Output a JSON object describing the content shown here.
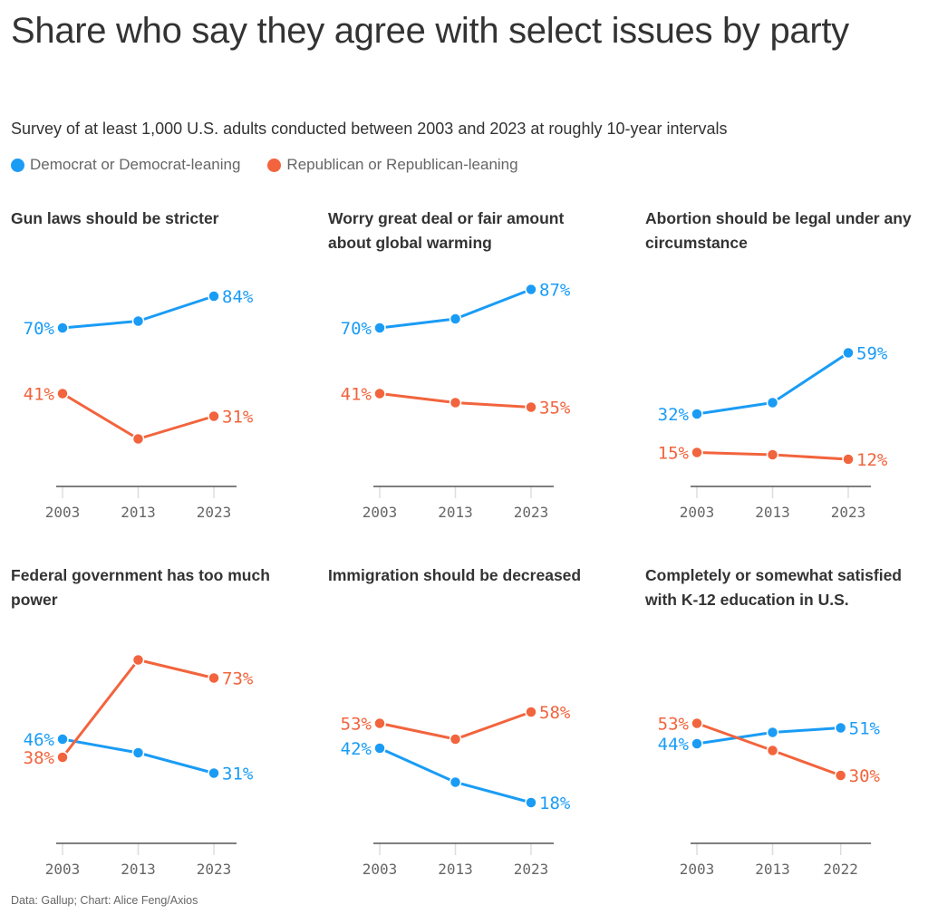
{
  "title": "Share who say they agree with select issues by party",
  "subtitle": "Survey of at least 1,000 U.S. adults conducted between 2003 and 2023 at roughly 10-year intervals",
  "legend": [
    {
      "label": "Democrat or Democrat-leaning",
      "color": "#1a9cf5"
    },
    {
      "label": "Republican or Republican-leaning",
      "color": "#f2643d"
    }
  ],
  "source": "Data: Gallup; Chart: Alice Feng/Axios",
  "chart_data": [
    {
      "type": "line",
      "title": "Gun laws should be stricter",
      "x": [
        2003,
        2013,
        2023
      ],
      "ylim": [
        0,
        100
      ],
      "series": [
        {
          "name": "Democrat or Democrat-leaning",
          "color": "#1a9cf5",
          "values": [
            70,
            73,
            84
          ],
          "labels": [
            "70%",
            null,
            "84%"
          ]
        },
        {
          "name": "Republican or Republican-leaning",
          "color": "#f2643d",
          "values": [
            41,
            21,
            31
          ],
          "labels": [
            "41%",
            null,
            "31%"
          ]
        }
      ]
    },
    {
      "type": "line",
      "title": "Worry great deal or fair amount about global warming",
      "x": [
        2003,
        2013,
        2023
      ],
      "ylim": [
        0,
        100
      ],
      "series": [
        {
          "name": "Democrat or Democrat-leaning",
          "color": "#1a9cf5",
          "values": [
            70,
            74,
            87
          ],
          "labels": [
            "70%",
            null,
            "87%"
          ]
        },
        {
          "name": "Republican or Republican-leaning",
          "color": "#f2643d",
          "values": [
            41,
            37,
            35
          ],
          "labels": [
            "41%",
            null,
            "35%"
          ]
        }
      ]
    },
    {
      "type": "line",
      "title": "Abortion should be legal under any circumstance",
      "x": [
        2003,
        2013,
        2023
      ],
      "ylim": [
        0,
        100
      ],
      "series": [
        {
          "name": "Democrat or Democrat-leaning",
          "color": "#1a9cf5",
          "values": [
            32,
            37,
            59
          ],
          "labels": [
            "32%",
            null,
            "59%"
          ]
        },
        {
          "name": "Republican or Republican-leaning",
          "color": "#f2643d",
          "values": [
            15,
            14,
            12
          ],
          "labels": [
            "15%",
            null,
            "12%"
          ]
        }
      ]
    },
    {
      "type": "line",
      "title": "Federal government has too much power",
      "x": [
        2003,
        2013,
        2023
      ],
      "ylim": [
        0,
        100
      ],
      "series": [
        {
          "name": "Democrat or Democrat-leaning",
          "color": "#1a9cf5",
          "values": [
            46,
            40,
            31
          ],
          "labels": [
            "46%",
            null,
            "31%"
          ]
        },
        {
          "name": "Republican or Republican-leaning",
          "color": "#f2643d",
          "values": [
            38,
            81,
            73
          ],
          "labels": [
            "38%",
            null,
            "73%"
          ]
        }
      ]
    },
    {
      "type": "line",
      "title": "Immigration should be decreased",
      "x": [
        2003,
        2013,
        2023
      ],
      "ylim": [
        0,
        100
      ],
      "series": [
        {
          "name": "Democrat or Democrat-leaning",
          "color": "#1a9cf5",
          "values": [
            42,
            27,
            18
          ],
          "labels": [
            "42%",
            null,
            "18%"
          ]
        },
        {
          "name": "Republican or Republican-leaning",
          "color": "#f2643d",
          "values": [
            53,
            46,
            58
          ],
          "labels": [
            "53%",
            null,
            "58%"
          ]
        }
      ]
    },
    {
      "type": "line",
      "title": "Completely or somewhat satisfied with K-12 education in U.S.",
      "x": [
        2003,
        2013,
        2022
      ],
      "ylim": [
        0,
        100
      ],
      "series": [
        {
          "name": "Democrat or Democrat-leaning",
          "color": "#1a9cf5",
          "values": [
            44,
            49,
            51
          ],
          "labels": [
            "44%",
            null,
            "51%"
          ]
        },
        {
          "name": "Republican or Republican-leaning",
          "color": "#f2643d",
          "values": [
            53,
            41,
            30
          ],
          "labels": [
            "53%",
            null,
            "30%"
          ]
        }
      ]
    }
  ]
}
